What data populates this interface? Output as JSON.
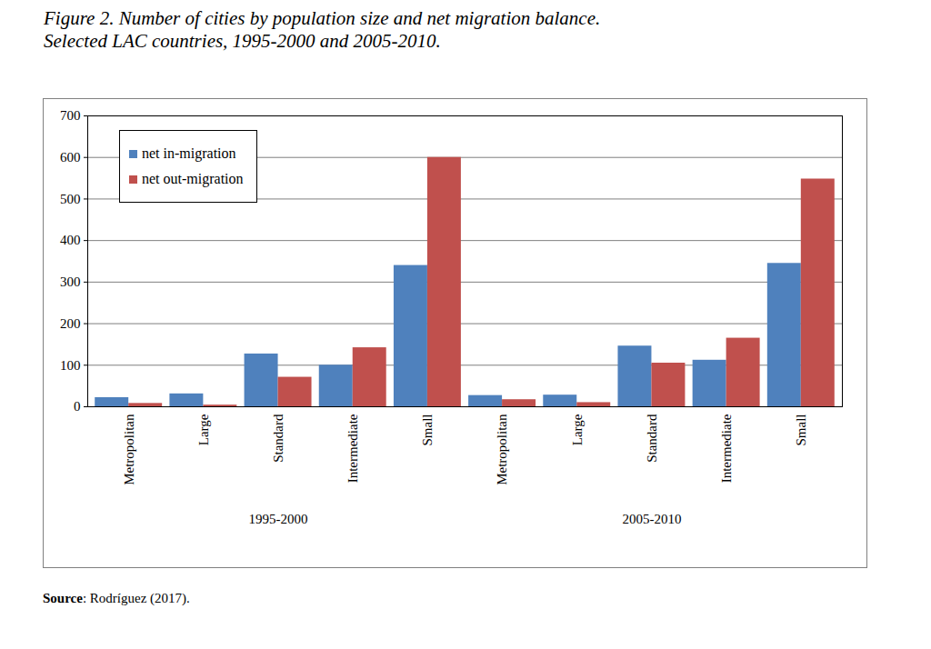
{
  "chart_data": {
    "type": "bar",
    "title": "Figure 2. Number of cities by population size and net migration balance.",
    "subtitle": "Selected LAC countries, 1995-2000 and 2005-2010.",
    "categories": [
      "Metropolitan",
      "Large",
      "Standard",
      "Intermediate",
      "Small"
    ],
    "groups": [
      "1995-2000",
      "2005-2010"
    ],
    "series": [
      {
        "name": "net in-migration",
        "color": "#4f81bd",
        "values": [
          [
            22,
            31,
            127,
            100,
            340
          ],
          [
            27,
            28,
            146,
            112,
            345
          ]
        ]
      },
      {
        "name": "net out-migration",
        "color": "#c0504d",
        "values": [
          [
            8,
            4,
            71,
            142,
            600
          ],
          [
            17,
            10,
            105,
            165,
            548
          ]
        ]
      }
    ],
    "ylim": [
      0,
      700
    ],
    "yticks": [
      0,
      100,
      200,
      300,
      400,
      500,
      600,
      700
    ],
    "grid": true,
    "legend": "top-left",
    "source": {
      "bold": "Source",
      "text": ": Rodríguez (2017)."
    }
  }
}
